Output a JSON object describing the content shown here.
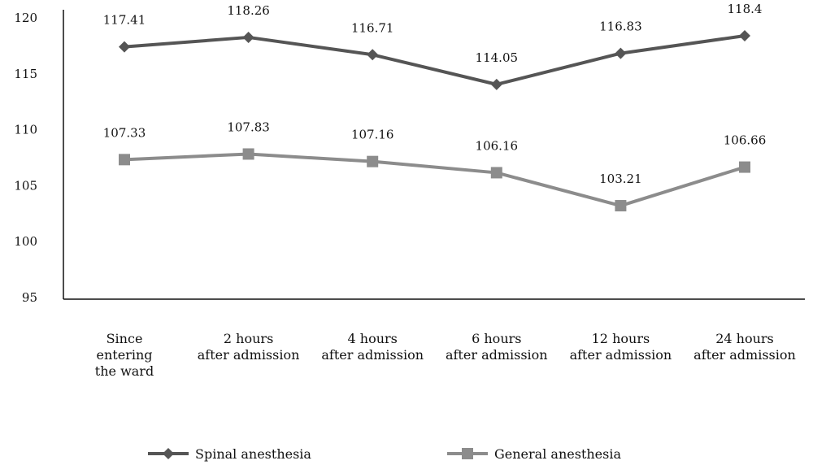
{
  "chart_data": {
    "type": "line",
    "categories": [
      [
        "Since",
        "entering",
        "the ward"
      ],
      [
        "2 hours",
        "after admission"
      ],
      [
        "4 hours",
        "after admission"
      ],
      [
        "6 hours",
        "after admission"
      ],
      [
        "12 hours",
        "after admission"
      ],
      [
        "24 hours",
        "after admission"
      ]
    ],
    "series": [
      {
        "name": "Spinal anesthesia",
        "values": [
          117.41,
          118.26,
          116.71,
          114.05,
          116.83,
          118.4
        ],
        "labels": [
          "117.41",
          "118.26",
          "116.71",
          "114.05",
          "116.83",
          "118.4"
        ],
        "color": "#555555",
        "marker": "diamond"
      },
      {
        "name": "General anesthesia",
        "values": [
          107.33,
          107.83,
          107.16,
          106.16,
          103.21,
          106.66
        ],
        "labels": [
          "107.33",
          "107.83",
          "107.16",
          "106.16",
          "103.21",
          "106.66"
        ],
        "color": "#8c8c8c",
        "marker": "square"
      }
    ],
    "yticks": [
      "95",
      "100",
      "105",
      "110",
      "115",
      "120"
    ],
    "ylim": [
      95,
      120
    ],
    "grid": false,
    "legend": "bottom",
    "title": "",
    "xlabel": "",
    "ylabel": ""
  }
}
